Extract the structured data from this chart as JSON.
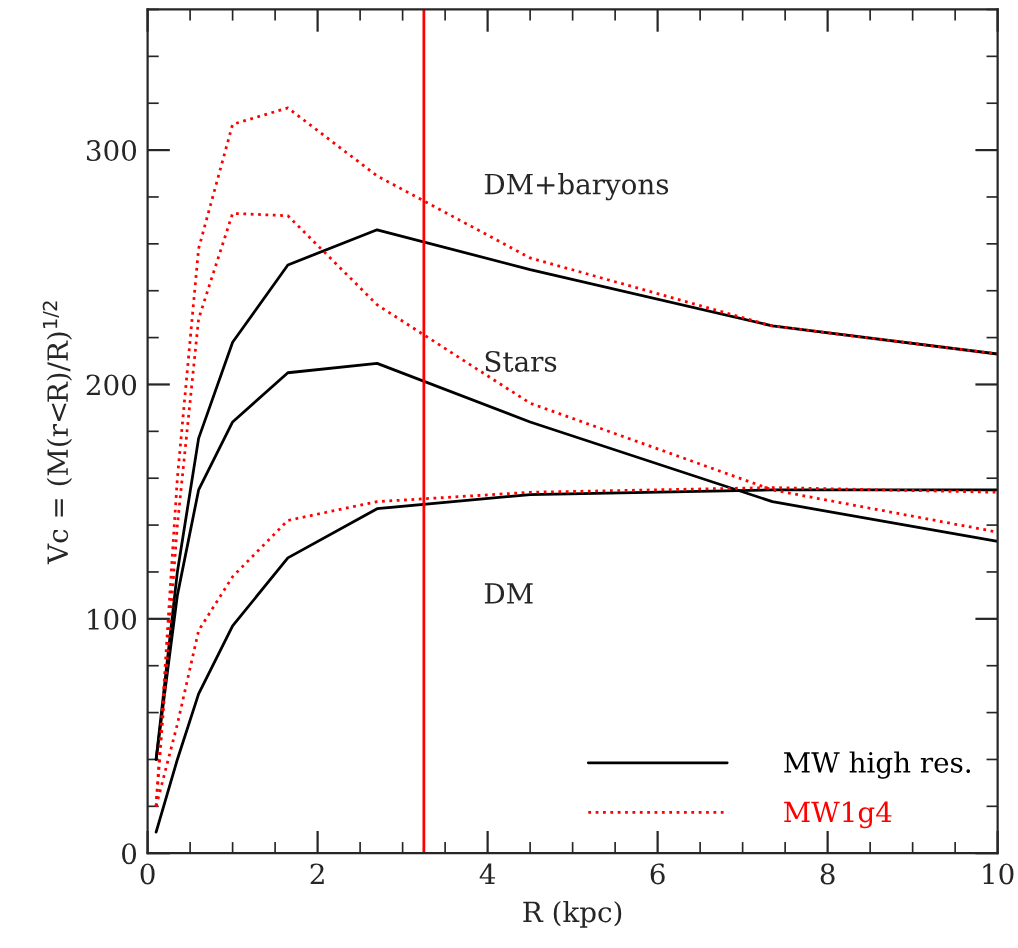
{
  "chart_data": {
    "type": "line",
    "xlabel": "R (kpc)",
    "ylabel": "Vc = (M(r<R)/R)$^{1/2}$",
    "x": [
      0.1,
      0.35,
      0.6,
      1.0,
      1.65,
      2.7,
      4.5,
      7.35,
      10
    ],
    "series": [
      {
        "name": "MW high res.",
        "color": "#000000",
        "line_style": "solid",
        "values": [
          40,
          120,
          177,
          218,
          251,
          266,
          249,
          225,
          213
        ]
      },
      {
        "color": "#000000",
        "line_style": "solid",
        "values": [
          40,
          110,
          155,
          184,
          205,
          209,
          184,
          150,
          133
        ]
      },
      {
        "color": "#000000",
        "line_style": "solid",
        "values": [
          9,
          40,
          68,
          97,
          126,
          147,
          153,
          155,
          155
        ]
      },
      {
        "name": "MW1g4",
        "color": "#ff0000",
        "line_style": "dotted",
        "values": [
          20,
          160,
          258,
          311,
          318,
          289,
          254,
          225,
          213
        ]
      },
      {
        "color": "#ff0000",
        "line_style": "dotted",
        "values": [
          20,
          140,
          228,
          273,
          272,
          234,
          192,
          155,
          137
        ]
      },
      {
        "color": "#ff0000",
        "line_style": "dotted",
        "values": [
          20,
          55,
          95,
          118,
          142,
          150,
          154,
          156,
          154
        ]
      }
    ],
    "xlim": [
      0,
      10
    ],
    "ylim": [
      0,
      360
    ],
    "xticks": [
      0,
      2,
      4,
      6,
      8,
      10
    ],
    "yticks": [
      0,
      100,
      200,
      300
    ],
    "ref_lines": [
      {
        "axis": "x",
        "value": 3.25,
        "color": "#ff0000"
      }
    ],
    "annotations": [
      "DM+baryons",
      "Stars",
      "DM"
    ],
    "legend": "bottom right",
    "grid": false
  }
}
